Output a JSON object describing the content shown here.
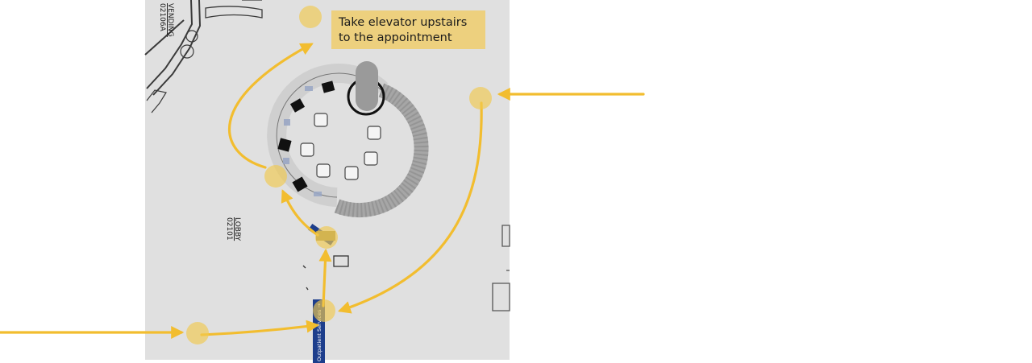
{
  "callout": {
    "line1": "Take elevator upstairs",
    "line2": "to the appointment",
    "background": "#edd07e"
  },
  "rooms": [
    {
      "name": "VENDING",
      "number": "02106A"
    },
    {
      "name": "LOBBY",
      "number": "02101"
    }
  ],
  "signs": {
    "blue_sign": "Outpatient Services →"
  },
  "colors": {
    "route": "#f2bd2f",
    "waypoint": "#f1c94f",
    "floor": "#e0e0e0",
    "sign_blue": "#1d3e8c"
  }
}
